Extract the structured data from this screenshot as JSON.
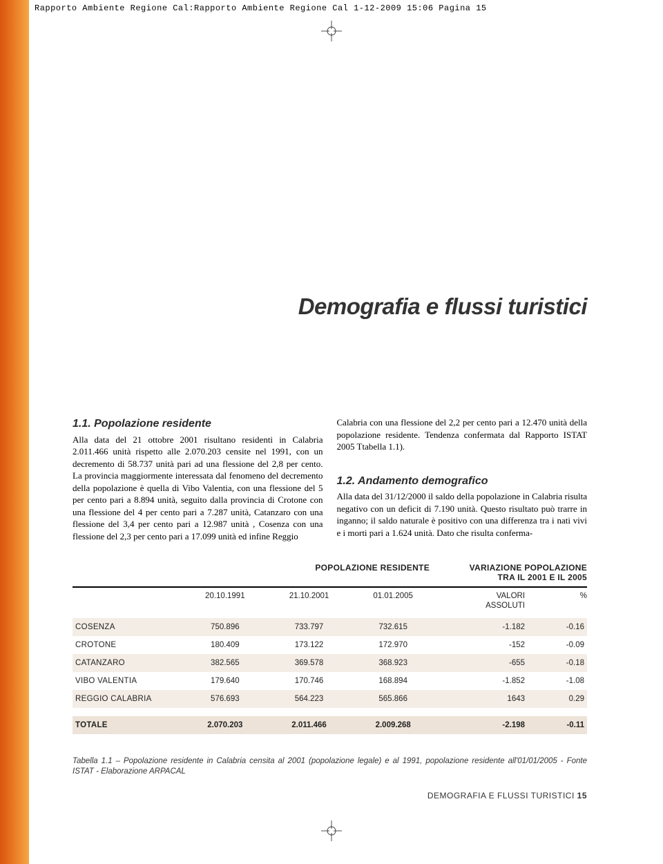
{
  "meta_header": "Rapporto Ambiente Regione Cal:Rapporto Ambiente Regione Cal  1-12-2009  15:06  Pagina 15",
  "page_title": "Demografia e flussi turistici",
  "section1": {
    "heading": "1.1. Popolazione residente",
    "body": "Alla data del 21 ottobre 2001 risultano residenti in Calabria 2.011.466 unità rispetto alle 2.070.203 censite nel 1991, con un decremento di 58.737 unità pari ad una flessione del 2,8 per cento. La provincia maggiormente interessata dal fenomeno del decremento della popolazione è quella di Vibo Valentia, con una flessione del 5 per cento pari a 8.894 unità, seguito dalla provincia di Crotone con una flessione del 4 per cento pari a 7.287 unità, Catanzaro con una flessione del 3,4 per cento pari a 12.987 unità , Cosenza con una flessione del 2,3 per cento pari a 17.099 unità ed infine Reggio"
  },
  "col2_top": "Calabria con una flessione del 2,2 per cento pari a 12.470 unità della popolazione residente. Tendenza confermata dal Rapporto ISTAT 2005 Ttabella 1.1).",
  "section2": {
    "heading": "1.2. Andamento demografico",
    "body": "Alla data del 31/12/2000 il saldo della popolazione in Calabria risulta negativo con un deficit di 7.190 unità. Questo risultato può trarre in inganno; il saldo naturale è positivo con una differenza tra i nati vivi e i morti pari a 1.624 unità. Dato che risulta conferma-"
  },
  "table": {
    "group_headers": {
      "mid": "POPOLAZIONE RESIDENTE",
      "right_l1": "VARIAZIONE POPOLAZIONE",
      "right_l2": "TRA IL 2001 E IL 2005"
    },
    "sub_headers": {
      "c1": "20.10.1991",
      "c2": "21.10.2001",
      "c3": "01.01.2005",
      "val_l1": "VALORI",
      "val_l2": "ASSOLUTI",
      "pct": "%"
    },
    "rows": [
      {
        "prov": "COSENZA",
        "c1": "750.896",
        "c2": "733.797",
        "c3": "732.615",
        "val": "-1.182",
        "pct": "-0.16"
      },
      {
        "prov": "CROTONE",
        "c1": "180.409",
        "c2": "173.122",
        "c3": "172.970",
        "val": "-152",
        "pct": "-0.09"
      },
      {
        "prov": "CATANZARO",
        "c1": "382.565",
        "c2": "369.578",
        "c3": "368.923",
        "val": "-655",
        "pct": "-0.18"
      },
      {
        "prov": "VIBO VALENTIA",
        "c1": "179.640",
        "c2": "170.746",
        "c3": "168.894",
        "val": "-1.852",
        "pct": "-1.08"
      },
      {
        "prov": "REGGIO CALABRIA",
        "c1": "576.693",
        "c2": "564.223",
        "c3": "565.866",
        "val": "1643",
        "pct": "0.29"
      }
    ],
    "total": {
      "prov": "TOTALE",
      "c1": "2.070.203",
      "c2": "2.011.466",
      "c3": "2.009.268",
      "val": "-2.198",
      "pct": "-0.11"
    }
  },
  "caption": "Tabella 1.1 – Popolazione residente in Calabria censita al 2001 (popolazione legale) e al 1991, popolazione residente all'01/01/2005 - Fonte ISTAT - Elaborazione ARPACAL",
  "footer": {
    "text": "DEMOGRAFIA E FLUSSI TURISTICI ",
    "page": "15"
  },
  "colors": {
    "strip_dark": "#d9550f",
    "strip_light": "#f4a845",
    "row_odd": "#f4ede6",
    "row_total": "#ede3d8"
  }
}
